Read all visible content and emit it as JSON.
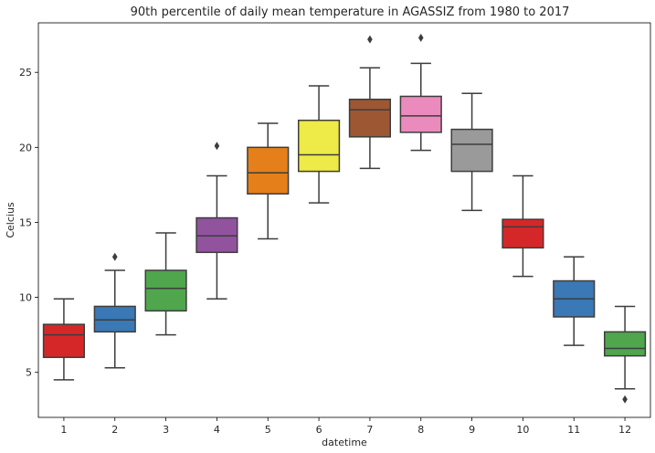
{
  "chart_data": {
    "type": "box",
    "title": "90th percentile of daily mean temperature in AGASSIZ from 1980 to 2017",
    "xlabel": "datetime",
    "ylabel": "Celcius",
    "ylim": [
      2,
      28.3
    ],
    "yticks": [
      5,
      10,
      15,
      20,
      25
    ],
    "grid": false,
    "legend": "none",
    "categories": [
      "1",
      "2",
      "3",
      "4",
      "5",
      "6",
      "7",
      "8",
      "9",
      "10",
      "11",
      "12"
    ],
    "boxes": [
      {
        "category": "1",
        "min": 4.5,
        "q1": 6.0,
        "median": 7.5,
        "q3": 8.2,
        "max": 9.9,
        "outliers": [],
        "color": "#d62728"
      },
      {
        "category": "2",
        "min": 5.3,
        "q1": 7.7,
        "median": 8.5,
        "q3": 9.4,
        "max": 11.8,
        "outliers": [
          12.7
        ],
        "color": "#3a78b6"
      },
      {
        "category": "3",
        "min": 7.5,
        "q1": 9.1,
        "median": 10.6,
        "q3": 11.8,
        "max": 14.3,
        "outliers": [],
        "color": "#4fa64c"
      },
      {
        "category": "4",
        "min": 9.9,
        "q1": 13.0,
        "median": 14.1,
        "q3": 15.3,
        "max": 18.1,
        "outliers": [
          20.1
        ],
        "color": "#91539e"
      },
      {
        "category": "5",
        "min": 13.9,
        "q1": 16.9,
        "median": 18.3,
        "q3": 20.0,
        "max": 21.6,
        "outliers": [],
        "color": "#e57f1a"
      },
      {
        "category": "6",
        "min": 16.3,
        "q1": 18.4,
        "median": 19.5,
        "q3": 21.8,
        "max": 24.1,
        "outliers": [],
        "color": "#eeea47"
      },
      {
        "category": "7",
        "min": 18.6,
        "q1": 20.7,
        "median": 22.5,
        "q3": 23.2,
        "max": 25.3,
        "outliers": [
          27.2
        ],
        "color": "#9d5733"
      },
      {
        "category": "8",
        "min": 19.8,
        "q1": 21.0,
        "median": 22.1,
        "q3": 23.4,
        "max": 25.6,
        "outliers": [
          27.3
        ],
        "color": "#eb8bbd"
      },
      {
        "category": "9",
        "min": 15.8,
        "q1": 18.4,
        "median": 20.2,
        "q3": 21.2,
        "max": 23.6,
        "outliers": [],
        "color": "#9a9a9a"
      },
      {
        "category": "10",
        "min": 11.4,
        "q1": 13.3,
        "median": 14.7,
        "q3": 15.2,
        "max": 18.1,
        "outliers": [],
        "color": "#d62728"
      },
      {
        "category": "11",
        "min": 6.8,
        "q1": 8.7,
        "median": 9.9,
        "q3": 11.1,
        "max": 12.7,
        "outliers": [],
        "color": "#3a78b6"
      },
      {
        "category": "12",
        "min": 3.9,
        "q1": 6.1,
        "median": 6.6,
        "q3": 7.7,
        "max": 9.4,
        "outliers": [
          3.2
        ],
        "color": "#4fa64c"
      }
    ]
  }
}
